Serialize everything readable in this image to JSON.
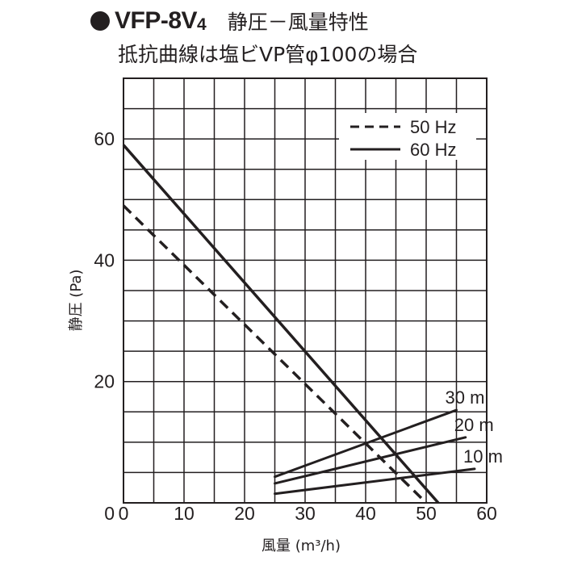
{
  "header": {
    "model": "VFP-8V",
    "model_sub": "4",
    "title": "静圧－風量特性",
    "subtitle": "抵抗曲線は塩ビVP管φ100の場合"
  },
  "chart_data": {
    "type": "line",
    "xlabel": "風量 (m³/h)",
    "ylabel": "静圧 (Pa)",
    "xlim": [
      0,
      60
    ],
    "ylim": [
      0,
      70
    ],
    "xticks": [
      0,
      10,
      20,
      30,
      40,
      50,
      60
    ],
    "yticks": [
      20,
      40,
      60
    ],
    "grid": true,
    "legend_position": "top-right",
    "series": [
      {
        "name": "50 Hz",
        "style": "dashed",
        "x": [
          0,
          50
        ],
        "y": [
          49,
          0
        ]
      },
      {
        "name": "60 Hz",
        "style": "solid",
        "x": [
          0,
          52
        ],
        "y": [
          59,
          0
        ]
      }
    ],
    "resistance_curves": [
      {
        "label": "30 m",
        "x": [
          25,
          55
        ],
        "y": [
          4.3,
          15.3
        ]
      },
      {
        "label": "20 m",
        "x": [
          25,
          56.5
        ],
        "y": [
          3.2,
          10.8
        ]
      },
      {
        "label": "10 m",
        "x": [
          25,
          58
        ],
        "y": [
          1.5,
          5.6
        ]
      }
    ]
  }
}
